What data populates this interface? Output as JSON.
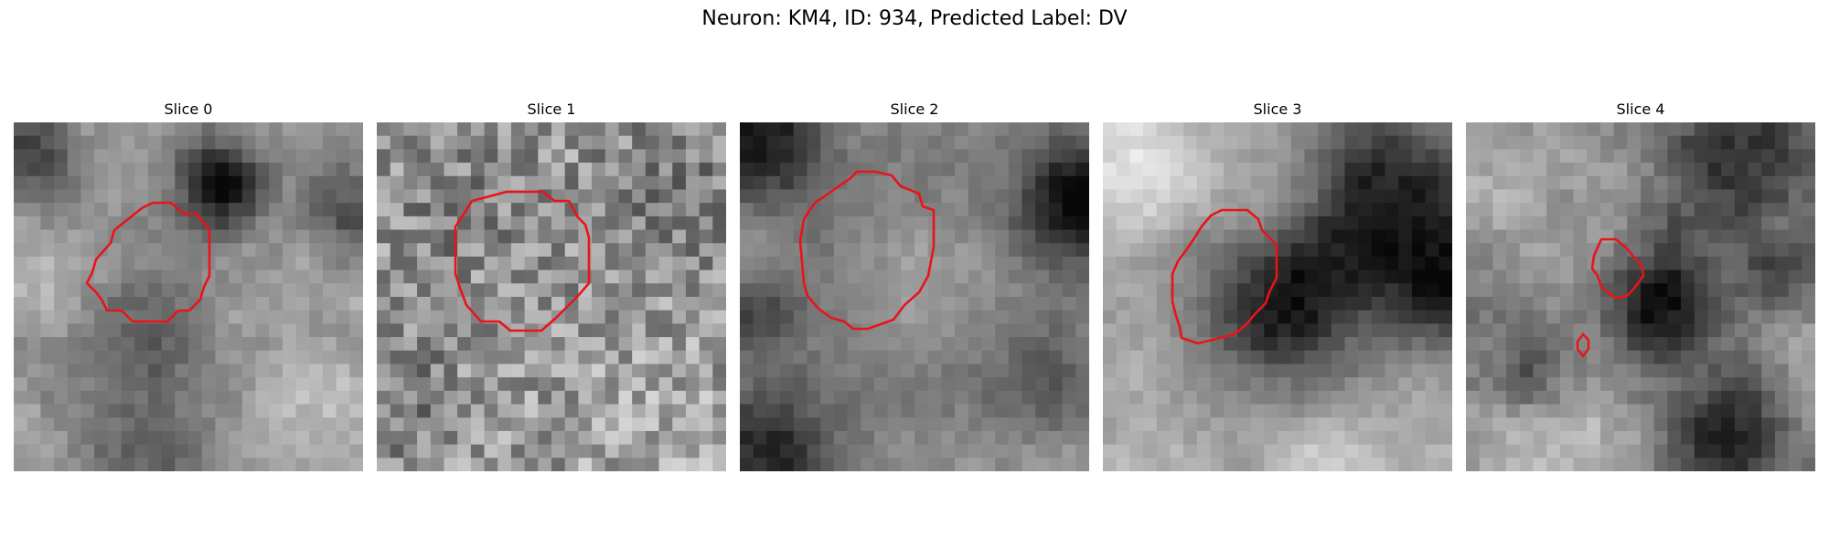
{
  "figure": {
    "title": "Neuron: KM4, ID: 934, Predicted Label: DV"
  },
  "panels": [
    {
      "title": "Slice 0"
    },
    {
      "title": "Slice 1"
    },
    {
      "title": "Slice 2"
    },
    {
      "title": "Slice 3"
    },
    {
      "title": "Slice 4"
    }
  ],
  "colors": {
    "contour": "#e8141a"
  }
}
